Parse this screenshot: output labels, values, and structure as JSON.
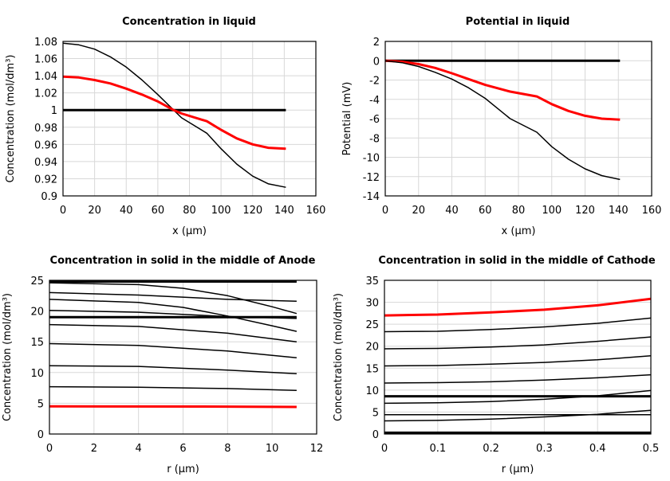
{
  "chart_data": [
    {
      "type": "line",
      "title": "Concentration in liquid",
      "xlabel": "x (µm)",
      "ylabel": "Concentration (mol/dm³)",
      "xlim": [
        0,
        160
      ],
      "ylim": [
        0.9,
        1.08
      ],
      "xticks": [
        0,
        20,
        40,
        60,
        80,
        100,
        120,
        140,
        160
      ],
      "yticks": [
        0.9,
        0.92,
        0.94,
        0.96,
        0.98,
        1,
        1.02,
        1.04,
        1.06,
        1.08
      ],
      "grid": true,
      "series": [
        {
          "color": "#000000",
          "width": 3,
          "points": [
            [
              0,
              1
            ],
            [
              141,
              1
            ]
          ]
        },
        {
          "color": "#000000",
          "width": 1.5,
          "points": [
            [
              0,
              1.078
            ],
            [
              10,
              1.076
            ],
            [
              20,
              1.071
            ],
            [
              30,
              1.062
            ],
            [
              40,
              1.05
            ],
            [
              50,
              1.035
            ],
            [
              60,
              1.018
            ],
            [
              70,
              1.0
            ],
            [
              75,
              0.991
            ],
            [
              91,
              0.973
            ],
            [
              100,
              0.955
            ],
            [
              110,
              0.937
            ],
            [
              120,
              0.923
            ],
            [
              130,
              0.914
            ],
            [
              141,
              0.91
            ]
          ]
        },
        {
          "color": "#ff0000",
          "width": 3,
          "points": [
            [
              0,
              1.039
            ],
            [
              10,
              1.038
            ],
            [
              20,
              1.035
            ],
            [
              30,
              1.031
            ],
            [
              40,
              1.025
            ],
            [
              50,
              1.018
            ],
            [
              60,
              1.01
            ],
            [
              70,
              1.0
            ],
            [
              75,
              0.996
            ],
            [
              91,
              0.987
            ],
            [
              100,
              0.977
            ],
            [
              110,
              0.967
            ],
            [
              120,
              0.96
            ],
            [
              130,
              0.956
            ],
            [
              141,
              0.955
            ]
          ]
        }
      ]
    },
    {
      "type": "line",
      "title": "Potential in liquid",
      "xlabel": "x (µm)",
      "ylabel": "Potential (mV)",
      "xlim": [
        0,
        160
      ],
      "ylim": [
        -14,
        2
      ],
      "xticks": [
        0,
        20,
        40,
        60,
        80,
        100,
        120,
        140,
        160
      ],
      "yticks": [
        -14,
        -12,
        -10,
        -8,
        -6,
        -4,
        -2,
        0,
        2
      ],
      "grid": true,
      "series": [
        {
          "color": "#000000",
          "width": 3,
          "points": [
            [
              0,
              0
            ],
            [
              141,
              0
            ]
          ]
        },
        {
          "color": "#ff0000",
          "width": 3,
          "points": [
            [
              0,
              0
            ],
            [
              10,
              -0.1
            ],
            [
              20,
              -0.35
            ],
            [
              30,
              -0.75
            ],
            [
              40,
              -1.3
            ],
            [
              50,
              -1.9
            ],
            [
              60,
              -2.5
            ],
            [
              75,
              -3.2
            ],
            [
              91,
              -3.7
            ],
            [
              100,
              -4.5
            ],
            [
              110,
              -5.2
            ],
            [
              120,
              -5.7
            ],
            [
              130,
              -6.0
            ],
            [
              141,
              -6.1
            ]
          ]
        },
        {
          "color": "#000000",
          "width": 1.5,
          "points": [
            [
              0,
              0
            ],
            [
              10,
              -0.2
            ],
            [
              20,
              -0.6
            ],
            [
              30,
              -1.2
            ],
            [
              40,
              -1.9
            ],
            [
              50,
              -2.8
            ],
            [
              60,
              -3.9
            ],
            [
              75,
              -6.0
            ],
            [
              91,
              -7.4
            ],
            [
              100,
              -8.9
            ],
            [
              110,
              -10.2
            ],
            [
              120,
              -11.2
            ],
            [
              130,
              -11.9
            ],
            [
              141,
              -12.3
            ]
          ]
        }
      ]
    },
    {
      "type": "line",
      "title": "Concentration in solid in the middle of Anode",
      "xlabel": "r (µm)",
      "ylabel": "Concentration (mol/dm³)",
      "xlim": [
        0,
        12
      ],
      "ylim": [
        0,
        25
      ],
      "xticks": [
        0,
        2,
        4,
        6,
        8,
        10,
        12
      ],
      "yticks": [
        0,
        5,
        10,
        15,
        20,
        25
      ],
      "grid": true,
      "series": [
        {
          "color": "#000000",
          "width": 3,
          "points": [
            [
              0,
              24.8
            ],
            [
              11.1,
              24.8
            ]
          ]
        },
        {
          "color": "#000000",
          "width": 1.5,
          "points": [
            [
              0,
              24.6
            ],
            [
              4,
              24.3
            ],
            [
              6,
              23.7
            ],
            [
              8,
              22.5
            ],
            [
              10,
              20.7
            ],
            [
              11.1,
              19.6
            ]
          ]
        },
        {
          "color": "#000000",
          "width": 1.5,
          "points": [
            [
              0,
              23
            ],
            [
              4,
              22.6
            ],
            [
              8,
              21.9
            ],
            [
              11.1,
              21.6
            ]
          ]
        },
        {
          "color": "#000000",
          "width": 1.5,
          "points": [
            [
              0,
              21.9
            ],
            [
              4,
              21.4
            ],
            [
              6,
              20.6
            ],
            [
              8,
              19.2
            ],
            [
              10,
              17.6
            ],
            [
              11.1,
              16.7
            ]
          ]
        },
        {
          "color": "#000000",
          "width": 1.5,
          "points": [
            [
              0,
              20.1
            ],
            [
              4,
              19.8
            ],
            [
              8,
              19.1
            ],
            [
              11.1,
              18.8
            ]
          ]
        },
        {
          "color": "#000000",
          "width": 3,
          "points": [
            [
              0,
              19
            ],
            [
              11.1,
              19
            ]
          ]
        },
        {
          "color": "#000000",
          "width": 1.5,
          "points": [
            [
              0,
              17.8
            ],
            [
              4,
              17.5
            ],
            [
              8,
              16.4
            ],
            [
              11.1,
              15
            ]
          ]
        },
        {
          "color": "#000000",
          "width": 1.5,
          "points": [
            [
              0,
              14.7
            ],
            [
              4,
              14.4
            ],
            [
              8,
              13.5
            ],
            [
              11.1,
              12.4
            ]
          ]
        },
        {
          "color": "#000000",
          "width": 1.5,
          "points": [
            [
              0,
              11.1
            ],
            [
              4,
              11
            ],
            [
              8,
              10.4
            ],
            [
              11.1,
              9.8
            ]
          ]
        },
        {
          "color": "#000000",
          "width": 1.5,
          "points": [
            [
              0,
              7.7
            ],
            [
              4,
              7.6
            ],
            [
              8,
              7.4
            ],
            [
              11.1,
              7.1
            ]
          ]
        },
        {
          "color": "#ff0000",
          "width": 3,
          "points": [
            [
              0,
              4.5
            ],
            [
              8,
              4.45
            ],
            [
              11.1,
              4.4
            ]
          ]
        }
      ]
    },
    {
      "type": "line",
      "title": "Concentration in solid in the middle of Cathode",
      "xlabel": "r (µm)",
      "ylabel": "Concentration (mol/dm³)",
      "xlim": [
        0,
        0.5
      ],
      "ylim": [
        0,
        35
      ],
      "xticks": [
        0,
        0.1,
        0.2,
        0.3,
        0.4,
        0.5
      ],
      "yticks": [
        0,
        5,
        10,
        15,
        20,
        25,
        30,
        35
      ],
      "grid": true,
      "series": [
        {
          "color": "#ff0000",
          "width": 3,
          "points": [
            [
              0,
              27
            ],
            [
              0.1,
              27.2
            ],
            [
              0.2,
              27.7
            ],
            [
              0.3,
              28.3
            ],
            [
              0.4,
              29.3
            ],
            [
              0.5,
              30.8
            ]
          ]
        },
        {
          "color": "#000000",
          "width": 1.5,
          "points": [
            [
              0,
              23.3
            ],
            [
              0.1,
              23.4
            ],
            [
              0.2,
              23.8
            ],
            [
              0.3,
              24.4
            ],
            [
              0.4,
              25.2
            ],
            [
              0.5,
              26.4
            ]
          ]
        },
        {
          "color": "#000000",
          "width": 1.5,
          "points": [
            [
              0,
              19.4
            ],
            [
              0.1,
              19.5
            ],
            [
              0.2,
              19.8
            ],
            [
              0.3,
              20.3
            ],
            [
              0.4,
              21.1
            ],
            [
              0.5,
              22.1
            ]
          ]
        },
        {
          "color": "#000000",
          "width": 1.5,
          "points": [
            [
              0,
              15.5
            ],
            [
              0.1,
              15.6
            ],
            [
              0.2,
              15.9
            ],
            [
              0.3,
              16.3
            ],
            [
              0.4,
              16.9
            ],
            [
              0.5,
              17.8
            ]
          ]
        },
        {
          "color": "#000000",
          "width": 1.5,
          "points": [
            [
              0,
              11.6
            ],
            [
              0.1,
              11.7
            ],
            [
              0.2,
              11.9
            ],
            [
              0.3,
              12.3
            ],
            [
              0.4,
              12.8
            ],
            [
              0.5,
              13.5
            ]
          ]
        },
        {
          "color": "#000000",
          "width": 3,
          "points": [
            [
              0,
              8.6
            ],
            [
              0.5,
              8.6
            ]
          ]
        },
        {
          "color": "#000000",
          "width": 1.5,
          "points": [
            [
              0,
              7
            ],
            [
              0.1,
              7.1
            ],
            [
              0.2,
              7.4
            ],
            [
              0.3,
              7.9
            ],
            [
              0.4,
              8.7
            ],
            [
              0.5,
              9.9
            ]
          ]
        },
        {
          "color": "#000000",
          "width": 1.5,
          "points": [
            [
              0,
              4.4
            ],
            [
              0.5,
              4.4
            ]
          ]
        },
        {
          "color": "#000000",
          "width": 1.5,
          "points": [
            [
              0,
              3
            ],
            [
              0.1,
              3.1
            ],
            [
              0.2,
              3.4
            ],
            [
              0.3,
              3.9
            ],
            [
              0.4,
              4.5
            ],
            [
              0.5,
              5.4
            ]
          ]
        },
        {
          "color": "#000000",
          "width": 4,
          "points": [
            [
              0,
              0.2
            ],
            [
              0.5,
              0.2
            ]
          ]
        }
      ]
    }
  ]
}
